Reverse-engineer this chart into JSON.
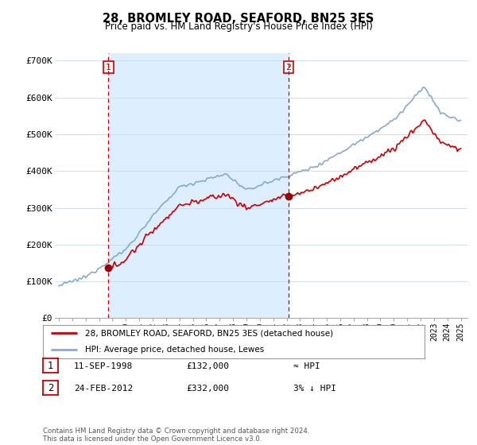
{
  "title": "28, BROMLEY ROAD, SEAFORD, BN25 3ES",
  "subtitle": "Price paid vs. HM Land Registry's House Price Index (HPI)",
  "ylim": [
    0,
    720000
  ],
  "yticks": [
    0,
    100000,
    200000,
    300000,
    400000,
    500000,
    600000,
    700000
  ],
  "ytick_labels": [
    "£0",
    "£100K",
    "£200K",
    "£300K",
    "£400K",
    "£500K",
    "£600K",
    "£700K"
  ],
  "purchase1": {
    "date_num": 1998.69,
    "price": 132000,
    "label": "1"
  },
  "purchase2": {
    "date_num": 2012.14,
    "price": 332000,
    "label": "2"
  },
  "legend_line1": "28, BROMLEY ROAD, SEAFORD, BN25 3ES (detached house)",
  "legend_line2": "HPI: Average price, detached house, Lewes",
  "table_row1": [
    "1",
    "11-SEP-1998",
    "£132,000",
    "≈ HPI"
  ],
  "table_row2": [
    "2",
    "24-FEB-2012",
    "£332,000",
    "3% ↓ HPI"
  ],
  "footer": "Contains HM Land Registry data © Crown copyright and database right 2024.\nThis data is licensed under the Open Government Licence v3.0.",
  "line_color_red": "#cc0000",
  "line_color_blue": "#88aacc",
  "fill_color": "#ddeeff",
  "vline_color": "#cc0000",
  "bg_color": "#ffffff",
  "grid_color": "#ccddee"
}
